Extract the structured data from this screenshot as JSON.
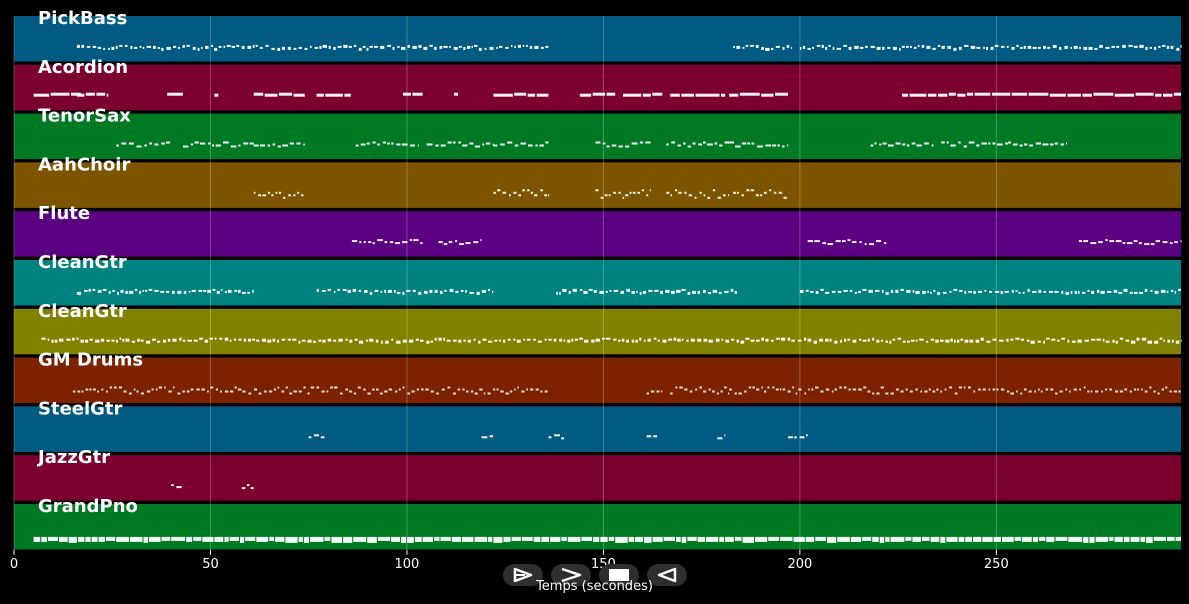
{
  "chart_data": {
    "type": "piano-roll",
    "xlabel": "Temps (secondes)",
    "xlim": [
      0,
      297
    ],
    "xticks": [
      0,
      50,
      100,
      150,
      200,
      250
    ],
    "grid": true,
    "tracks": [
      {
        "name": "PickBass",
        "color": "#005a82",
        "segments": [
          [
            16,
            136
          ],
          [
            183,
            198
          ],
          [
            200,
            297
          ]
        ],
        "style": "dense"
      },
      {
        "name": "Acordion",
        "color": "#7c002e",
        "segments": [
          [
            5,
            17
          ],
          [
            16,
            24
          ],
          [
            39,
            43
          ],
          [
            51,
            52
          ],
          [
            61,
            74
          ],
          [
            77,
            86
          ],
          [
            99,
            104
          ],
          [
            112,
            113
          ],
          [
            122,
            136
          ],
          [
            144,
            153
          ],
          [
            155,
            165
          ],
          [
            167,
            175
          ],
          [
            175,
            181
          ],
          [
            182,
            197
          ],
          [
            226,
            297
          ]
        ],
        "style": "long"
      },
      {
        "name": "TenorSax",
        "color": "#007a22",
        "segments": [
          [
            26,
            40
          ],
          [
            43,
            61
          ],
          [
            61,
            74
          ],
          [
            87,
            103
          ],
          [
            105,
            122
          ],
          [
            122,
            136
          ],
          [
            148,
            162
          ],
          [
            166,
            182
          ],
          [
            182,
            197
          ],
          [
            218,
            234
          ],
          [
            236,
            253
          ],
          [
            253,
            268
          ]
        ],
        "style": "sparse"
      },
      {
        "name": "AahChoir",
        "color": "#7d5400",
        "segments": [
          [
            61,
            74
          ],
          [
            122,
            136
          ],
          [
            148,
            162
          ],
          [
            166,
            182
          ],
          [
            183,
            197
          ]
        ],
        "style": "chords"
      },
      {
        "name": "Flute",
        "color": "#5a0080",
        "segments": [
          [
            86,
            104
          ],
          [
            108,
            119
          ],
          [
            202,
            222
          ],
          [
            271,
            297
          ]
        ],
        "style": "sparse"
      },
      {
        "name": "CleanGtr",
        "color": "#008280",
        "segments": [
          [
            16,
            61
          ],
          [
            77,
            122
          ],
          [
            138,
            184
          ],
          [
            200,
            297
          ]
        ],
        "style": "dense"
      },
      {
        "name": "CleanGtr",
        "color": "#828200",
        "segments": [
          [
            7,
            297
          ]
        ],
        "style": "dense"
      },
      {
        "name": "GM Drums",
        "color": "#7c2200",
        "segments": [
          [
            15,
            136
          ],
          [
            161,
            165
          ],
          [
            167,
            182
          ],
          [
            182,
            297
          ]
        ],
        "style": "drums"
      },
      {
        "name": "SteelGtr",
        "color": "#005a82",
        "segments": [
          [
            75,
            79
          ],
          [
            119,
            122
          ],
          [
            136,
            140
          ],
          [
            161,
            164
          ],
          [
            179,
            181
          ],
          [
            197,
            202
          ]
        ],
        "style": "sparse"
      },
      {
        "name": "JazzGtr",
        "color": "#7c002e",
        "segments": [
          [
            40,
            43
          ],
          [
            58,
            61
          ]
        ],
        "style": "sparse"
      },
      {
        "name": "GrandPno",
        "color": "#007a22",
        "segments": [
          [
            5,
            297
          ]
        ],
        "style": "piano"
      }
    ]
  },
  "controls": {
    "play_icon": "play-outline-icon",
    "next_icon": "fast-forward-icon",
    "stop_icon": "stop-icon",
    "prev_icon": "rewind-icon"
  }
}
